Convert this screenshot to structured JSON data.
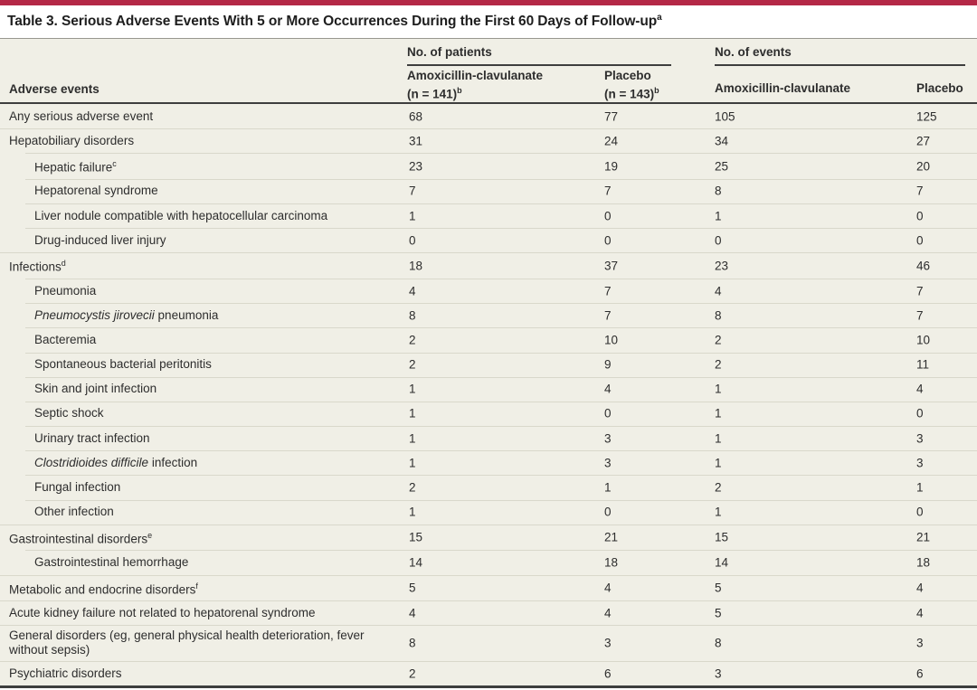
{
  "colors": {
    "accent": "#b42846",
    "table_bg": "#f0efe6",
    "rule_dark": "#3e3e3e",
    "separator": "#d9d8cb"
  },
  "table": {
    "title": "Table 3. Serious Adverse Events With 5 or More Occurrences During the First 60 Days of Follow-up",
    "title_sup": "a",
    "row_header": "Adverse events",
    "col_groups": [
      {
        "label": "No. of patients",
        "cols": [
          {
            "line1": "Amoxicillin-clavulanate",
            "line2": "(n = 141)",
            "sup": "b"
          },
          {
            "line1": "Placebo",
            "line2": "(n = 143)",
            "sup": "b"
          }
        ]
      },
      {
        "label": "No. of events",
        "cols": [
          {
            "line1": "Amoxicillin-clavulanate"
          },
          {
            "line1": "Placebo"
          }
        ]
      }
    ],
    "rows": [
      {
        "label": "Any serious adverse event",
        "indent": 0,
        "values": [
          68,
          77,
          105,
          125
        ]
      },
      {
        "label": "Hepatobiliary disorders",
        "indent": 0,
        "values": [
          31,
          24,
          34,
          27
        ]
      },
      {
        "label": "Hepatic failure",
        "sup": "c",
        "indent": 1,
        "values": [
          23,
          19,
          25,
          20
        ]
      },
      {
        "label": "Hepatorenal syndrome",
        "indent": 1,
        "values": [
          7,
          7,
          8,
          7
        ]
      },
      {
        "label": "Liver nodule compatible with hepatocellular carcinoma",
        "indent": 1,
        "values": [
          1,
          0,
          1,
          0
        ]
      },
      {
        "label": "Drug-induced liver injury",
        "indent": 1,
        "values": [
          0,
          0,
          0,
          0
        ]
      },
      {
        "label": "Infections",
        "sup": "d",
        "indent": 0,
        "values": [
          18,
          37,
          23,
          46
        ]
      },
      {
        "label": "Pneumonia",
        "indent": 1,
        "values": [
          4,
          7,
          4,
          7
        ]
      },
      {
        "italic": "Pneumocystis jirovecii",
        "label": " pneumonia",
        "indent": 1,
        "values": [
          8,
          7,
          8,
          7
        ]
      },
      {
        "label": "Bacteremia",
        "indent": 1,
        "values": [
          2,
          10,
          2,
          10
        ]
      },
      {
        "label": "Spontaneous bacterial peritonitis",
        "indent": 1,
        "values": [
          2,
          9,
          2,
          11
        ]
      },
      {
        "label": "Skin and joint infection",
        "indent": 1,
        "values": [
          1,
          4,
          1,
          4
        ]
      },
      {
        "label": "Septic shock",
        "indent": 1,
        "values": [
          1,
          0,
          1,
          0
        ]
      },
      {
        "label": "Urinary tract infection",
        "indent": 1,
        "values": [
          1,
          3,
          1,
          3
        ]
      },
      {
        "italic": "Clostridioides difficile",
        "label": " infection",
        "indent": 1,
        "values": [
          1,
          3,
          1,
          3
        ]
      },
      {
        "label": "Fungal infection",
        "indent": 1,
        "values": [
          2,
          1,
          2,
          1
        ]
      },
      {
        "label": "Other infection",
        "indent": 1,
        "values": [
          1,
          0,
          1,
          0
        ]
      },
      {
        "label": "Gastrointestinal disorders",
        "sup": "e",
        "indent": 0,
        "values": [
          15,
          21,
          15,
          21
        ]
      },
      {
        "label": "Gastrointestinal hemorrhage",
        "indent": 1,
        "values": [
          14,
          18,
          14,
          18
        ]
      },
      {
        "label": "Metabolic and endocrine disorders",
        "sup": "f",
        "indent": 0,
        "values": [
          5,
          4,
          5,
          4
        ]
      },
      {
        "label": "Acute kidney failure not related to hepatorenal syndrome",
        "indent": 0,
        "values": [
          4,
          4,
          5,
          4
        ]
      },
      {
        "label": "General disorders (eg, general physical health deterioration, fever without sepsis)",
        "indent": 0,
        "values": [
          8,
          3,
          8,
          3
        ]
      },
      {
        "label": "Psychiatric disorders",
        "indent": 0,
        "values": [
          2,
          6,
          3,
          6
        ]
      }
    ]
  }
}
